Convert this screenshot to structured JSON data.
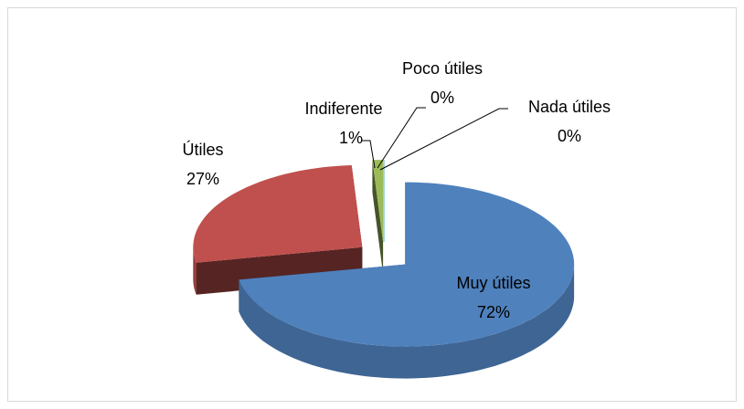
{
  "chart_data": {
    "type": "pie3d",
    "categories": [
      "Muy útiles",
      "Útiles",
      "Indiferente",
      "Poco útiles",
      "Nada útiles"
    ],
    "values": [
      72,
      27,
      1,
      0,
      0
    ],
    "value_labels": [
      "72%",
      "27%",
      "1%",
      "0%",
      "0%"
    ],
    "colors": [
      "#4f81bd",
      "#c0504d",
      "#9bbb59",
      "#8064a2",
      "#4bacc6"
    ]
  }
}
